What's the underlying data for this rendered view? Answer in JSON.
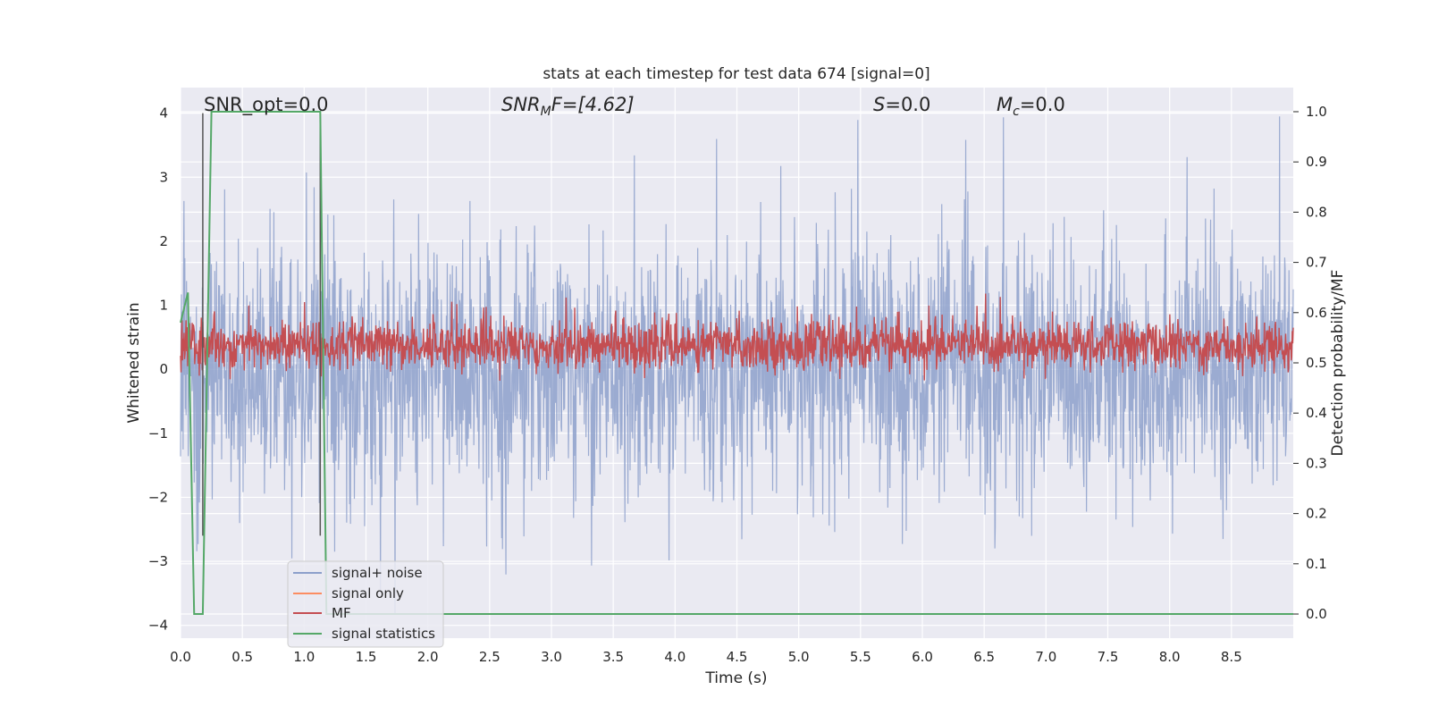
{
  "chart_data": {
    "type": "line",
    "title": "stats at each timestep for test data 674 [signal=0]",
    "xlabel": "Time (s)",
    "ylabel_left": "Whitened strain",
    "ylabel_right": "Detection probability/MF",
    "xlim": [
      0.0,
      9.0
    ],
    "ylim_left": [
      -4.2,
      4.4
    ],
    "ylim_right": [
      -0.048,
      1.048
    ],
    "x_ticks": [
      "0.0",
      "0.5",
      "1.0",
      "1.5",
      "2.0",
      "2.5",
      "3.0",
      "3.5",
      "4.0",
      "4.5",
      "5.0",
      "5.5",
      "6.0",
      "6.5",
      "7.0",
      "7.5",
      "8.0",
      "8.5"
    ],
    "y_left_ticks": [
      "4",
      "3",
      "2",
      "1",
      "0",
      "−1",
      "−2",
      "−3",
      "−4"
    ],
    "y_right_ticks": [
      "1.0",
      "0.9",
      "0.8",
      "0.7",
      "0.6",
      "0.5",
      "0.4",
      "0.3",
      "0.2",
      "0.1",
      "0.0"
    ],
    "grid": true,
    "legend_placement": "lower-left",
    "annotations": {
      "snr_opt": "SNR_opt=0.0",
      "snr_mf_label": "SNR",
      "snr_mf_sub": "M",
      "snr_mf_rest": "F=[4.62]",
      "s_label": "S",
      "s_rest": "=0.0",
      "mc_label": "M",
      "mc_sub": "c",
      "mc_rest": "=0.0"
    },
    "series": [
      {
        "name": "signal+ noise",
        "color": "#8da0cb",
        "axis": "left",
        "description_values": "noise, roughly symmetric about 0, amplitude about ±1.5 typical with spikes to ±4"
      },
      {
        "name": "signal only",
        "color": "#fc8d62",
        "axis": "left",
        "values": []
      },
      {
        "name": "MF",
        "color": "#c44e52",
        "axis": "right",
        "level": 0.535,
        "spread": 0.04
      },
      {
        "name": "signal statistics",
        "color": "#55a868",
        "axis": "right",
        "x": [
          0.0,
          0.06,
          0.11,
          0.18,
          0.25,
          1.13,
          1.18,
          1.5,
          9.0
        ],
        "values": [
          0.58,
          0.64,
          0.0,
          0.0,
          1.0,
          1.0,
          0.0,
          0.0,
          0.0
        ]
      }
    ],
    "vertical_markers": [
      {
        "x": 0.18,
        "color": "#555555"
      },
      {
        "x": 1.13,
        "color": "#555555"
      }
    ]
  }
}
